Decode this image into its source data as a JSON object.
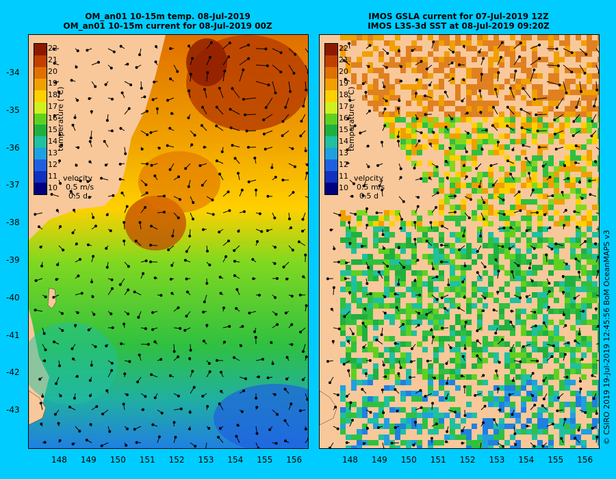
{
  "left_panel": {
    "title_line1": "OM_an01 10-15m temp. 08-Jul-2019",
    "title_line2": "OM_an01 10-15m current for 08-Jul-2019 00Z"
  },
  "right_panel": {
    "title_line1": "IMOS GSLA current for 07-Jul-2019 12Z",
    "title_line2": "IMOS L3S-3d SST at 08-Jul-2019 09:20Z"
  },
  "colorbar": {
    "title": "temperature (°C)",
    "labels": [
      "22",
      "21",
      "20",
      "19",
      "18",
      "17",
      "16",
      "15",
      "14",
      "13",
      "12",
      "11",
      "10"
    ],
    "colors": [
      "#8b1a00",
      "#c04000",
      "#e07000",
      "#f0a000",
      "#ffd000",
      "#d0f020",
      "#60d020",
      "#20b040",
      "#20c0a0",
      "#20a0e0",
      "#2060e0",
      "#1030c0",
      "#000080"
    ]
  },
  "velocity_key": {
    "label": "velocity",
    "speed": "0.5 m/s",
    "duration": "0.5 d"
  },
  "x_axis": {
    "ticks": [
      "148",
      "149",
      "150",
      "151",
      "152",
      "153",
      "154",
      "155",
      "156"
    ]
  },
  "y_axis": {
    "ticks": [
      "-34",
      "-35",
      "-36",
      "-37",
      "-38",
      "-39",
      "-40",
      "-41",
      "-42",
      "-43"
    ]
  },
  "credit": "© CSIRO 2019   19-Jul-2019 12:45:56 BoM OceanMAPS v3",
  "colors": {
    "background": "#00ccff",
    "land": "#f9c89a"
  }
}
